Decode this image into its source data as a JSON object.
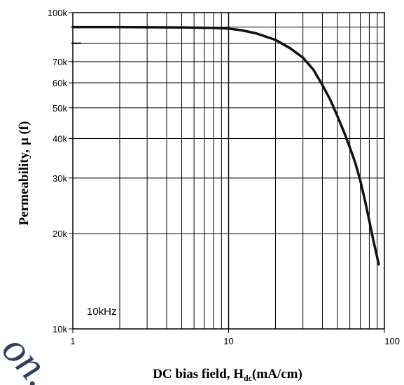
{
  "chart_data": {
    "type": "line",
    "xlabel": "DC bias field, H",
    "xlabel_sub": "dc",
    "xlabel_units": "(mA/cm)",
    "ylabel": "Permeability,",
    "ylabel_symbol": "μ (f)",
    "x_scale": "log",
    "y_scale": "log",
    "xlim": [
      1,
      100
    ],
    "ylim": [
      10000,
      100000
    ],
    "x_ticks": [
      {
        "value": 1,
        "label": "1"
      },
      {
        "value": 10,
        "label": "10"
      },
      {
        "value": 100,
        "label": "100"
      }
    ],
    "y_ticks": [
      {
        "value": 10000,
        "label": "10k"
      },
      {
        "value": 20000,
        "label": "20k"
      },
      {
        "value": 30000,
        "label": "30k"
      },
      {
        "value": 40000,
        "label": "40k"
      },
      {
        "value": 50000,
        "label": "50k"
      },
      {
        "value": 60000,
        "label": "60k"
      },
      {
        "value": 70000,
        "label": "70k"
      },
      {
        "value": 100000,
        "label": "100k"
      }
    ],
    "y_minor_marks": [
      80000,
      90000
    ],
    "grid": true,
    "annotation": "10kHz",
    "series": [
      {
        "x": [
          1,
          2,
          5,
          8,
          10,
          12,
          15,
          20,
          25,
          30,
          35,
          40,
          45,
          50,
          55,
          60,
          65,
          70,
          75,
          80,
          85,
          90,
          92
        ],
        "y": [
          90000,
          90000,
          89800,
          89500,
          89000,
          88000,
          86000,
          82000,
          77000,
          72000,
          66000,
          59000,
          53000,
          47000,
          42000,
          37500,
          33500,
          29500,
          25500,
          22000,
          19000,
          16800,
          16000
        ]
      }
    ]
  },
  "watermark": "on."
}
